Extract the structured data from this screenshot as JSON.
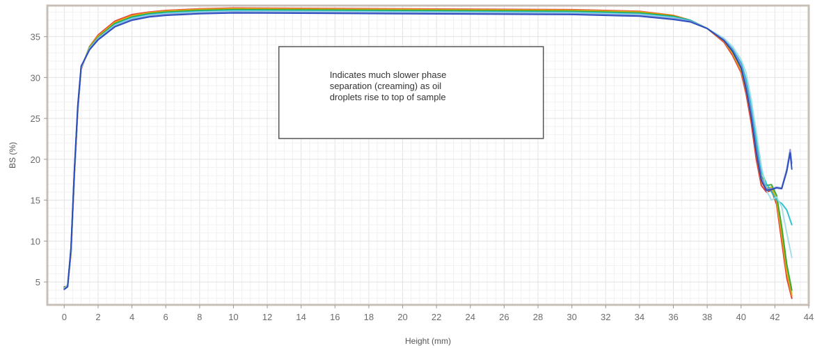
{
  "chart_data": {
    "type": "line",
    "xlabel": "Height (mm)",
    "ylabel": "BS (%)",
    "xlim": [
      -1,
      44
    ],
    "ylim": [
      2.2,
      38.8
    ],
    "xticks": [
      0,
      2,
      4,
      6,
      8,
      10,
      12,
      14,
      16,
      18,
      20,
      22,
      24,
      26,
      28,
      30,
      32,
      34,
      36,
      38,
      40,
      42,
      44
    ],
    "yticks": [
      5,
      10,
      15,
      20,
      25,
      30,
      35
    ],
    "grid": true,
    "annotation": {
      "lines": [
        "Indicates much slower phase",
        "separation (creaming) as oil",
        "droplets rise to top of sample"
      ],
      "anchor": [
        20.5,
        28.5
      ]
    },
    "colors": {
      "frame": "#c8c0b8",
      "grid_major": "#e2e2e2",
      "grid_minor": "#f1f1f1",
      "annotation_border": "#555555"
    },
    "series": [
      {
        "color": "#d62728",
        "x": [
          0,
          0.2,
          0.4,
          0.6,
          0.8,
          1.0,
          1.5,
          2.0,
          3.0,
          4.0,
          5.0,
          6.0,
          8.0,
          10.0,
          20.0,
          30.0,
          34.0,
          36.0,
          37.0,
          38.0,
          39.0,
          39.5,
          40.0,
          40.3,
          40.6,
          40.9,
          41.2,
          41.5,
          41.8,
          42.1,
          42.4,
          42.7,
          43.0
        ],
        "y": [
          4.4,
          4.5,
          8.5,
          18.0,
          26.0,
          31.0,
          33.8,
          35.2,
          36.9,
          37.7,
          38.0,
          38.2,
          38.4,
          38.5,
          38.4,
          38.3,
          38.1,
          37.6,
          37.0,
          36.0,
          34.3,
          32.7,
          30.6,
          28.0,
          24.5,
          20.0,
          16.8,
          16.0,
          16.2,
          14.5,
          10.0,
          5.5,
          3.0
        ]
      },
      {
        "color": "#ff7f0e",
        "x": [
          0,
          0.2,
          0.4,
          0.6,
          0.8,
          1.0,
          1.5,
          2.0,
          3.0,
          4.0,
          5.0,
          6.0,
          8.0,
          10.0,
          20.0,
          30.0,
          34.0,
          36.0,
          37.0,
          38.0,
          39.0,
          39.5,
          40.0,
          40.3,
          40.6,
          40.9,
          41.2,
          41.5,
          41.8,
          42.1,
          42.4,
          42.7,
          43.0
        ],
        "y": [
          4.3,
          4.5,
          8.6,
          18.2,
          26.1,
          31.1,
          33.8,
          35.1,
          36.8,
          37.6,
          37.95,
          38.15,
          38.35,
          38.45,
          38.35,
          38.25,
          38.05,
          37.6,
          37.0,
          36.0,
          34.4,
          32.9,
          30.8,
          28.4,
          25.0,
          20.6,
          17.2,
          16.3,
          16.4,
          14.8,
          10.6,
          6.0,
          3.3
        ]
      },
      {
        "color": "#bcbd22",
        "x": [
          0,
          0.2,
          0.4,
          0.6,
          0.8,
          1.0,
          1.5,
          2.0,
          3.0,
          4.0,
          5.0,
          6.0,
          8.0,
          10.0,
          20.0,
          30.0,
          34.0,
          36.0,
          37.0,
          38.0,
          39.0,
          39.5,
          40.0,
          40.3,
          40.6,
          40.9,
          41.2,
          41.5,
          41.8,
          42.1,
          42.4,
          42.7,
          43.0
        ],
        "y": [
          4.3,
          4.5,
          8.7,
          18.3,
          26.2,
          31.1,
          33.7,
          35.0,
          36.7,
          37.5,
          37.9,
          38.1,
          38.3,
          38.4,
          38.3,
          38.2,
          38.0,
          37.5,
          37.0,
          36.0,
          34.5,
          33.0,
          31.0,
          28.7,
          25.4,
          21.2,
          17.6,
          16.5,
          16.6,
          15.2,
          11.2,
          6.6,
          3.6
        ]
      },
      {
        "color": "#2ca02c",
        "x": [
          0,
          0.2,
          0.4,
          0.6,
          0.8,
          1.0,
          1.5,
          2.0,
          3.0,
          4.0,
          5.0,
          6.0,
          8.0,
          10.0,
          20.0,
          30.0,
          34.0,
          36.0,
          37.0,
          38.0,
          39.0,
          39.5,
          40.0,
          40.3,
          40.6,
          40.9,
          41.2,
          41.5,
          41.8,
          42.1,
          42.4,
          42.7,
          43.0
        ],
        "y": [
          4.3,
          4.6,
          8.8,
          18.4,
          26.3,
          31.2,
          33.7,
          34.9,
          36.6,
          37.4,
          37.8,
          38.0,
          38.2,
          38.3,
          38.2,
          38.1,
          37.9,
          37.5,
          37.0,
          36.0,
          34.6,
          33.2,
          31.2,
          29.0,
          25.8,
          21.8,
          18.0,
          16.8,
          16.9,
          15.6,
          11.8,
          7.2,
          4.0
        ]
      },
      {
        "color": "#17becf",
        "x": [
          0,
          0.2,
          0.4,
          0.6,
          0.8,
          1.0,
          1.5,
          2.0,
          3.0,
          4.0,
          5.0,
          6.0,
          8.0,
          10.0,
          20.0,
          30.0,
          34.0,
          36.0,
          37.0,
          38.0,
          39.0,
          39.5,
          40.0,
          40.3,
          40.6,
          40.9,
          41.2,
          41.5,
          41.8,
          42.1,
          42.4,
          42.7,
          43.0
        ],
        "y": [
          4.2,
          4.6,
          8.9,
          18.5,
          26.4,
          31.2,
          33.6,
          34.8,
          36.5,
          37.3,
          37.7,
          37.9,
          38.1,
          38.2,
          38.1,
          38.0,
          37.8,
          37.4,
          37.0,
          36.0,
          34.7,
          33.5,
          31.8,
          29.8,
          26.5,
          22.5,
          18.6,
          17.0,
          16.0,
          15.0,
          14.6,
          13.8,
          12.0
        ]
      },
      {
        "color": "#9edae5",
        "x": [
          0,
          0.2,
          0.4,
          0.6,
          0.8,
          1.0,
          1.5,
          2.0,
          3.0,
          4.0,
          5.0,
          6.0,
          8.0,
          10.0,
          20.0,
          30.0,
          34.0,
          36.0,
          37.0,
          38.0,
          39.0,
          39.5,
          40.0,
          40.3,
          40.6,
          40.9,
          41.2,
          41.5,
          41.8,
          42.1,
          42.4,
          42.7,
          43.0
        ],
        "y": [
          4.2,
          4.6,
          9.0,
          18.5,
          26.4,
          31.2,
          33.6,
          34.8,
          36.4,
          37.2,
          37.6,
          37.8,
          38.0,
          38.1,
          38.0,
          37.9,
          37.7,
          37.3,
          36.9,
          36.0,
          34.8,
          33.8,
          32.2,
          30.6,
          27.4,
          23.4,
          19.2,
          16.2,
          15.0,
          15.4,
          14.2,
          11.0,
          8.0
        ]
      },
      {
        "color": "#7b8fd4",
        "x": [
          0,
          0.2,
          0.4,
          0.6,
          0.8,
          1.0,
          1.5,
          2.0,
          3.0,
          4.0,
          5.0,
          6.0,
          8.0,
          10.0,
          20.0,
          30.0,
          34.0,
          36.0,
          37.0,
          38.0,
          39.0,
          39.5,
          40.0,
          40.3,
          40.6,
          40.9,
          41.2,
          41.5,
          41.8,
          42.1,
          42.4,
          42.7,
          42.9,
          43.0
        ],
        "y": [
          4.1,
          4.5,
          9.1,
          18.6,
          26.5,
          31.3,
          33.5,
          34.7,
          36.3,
          37.1,
          37.5,
          37.7,
          37.9,
          38.0,
          37.9,
          37.8,
          37.6,
          37.2,
          36.9,
          36.0,
          34.6,
          33.4,
          31.6,
          29.2,
          25.8,
          21.4,
          17.8,
          16.4,
          16.4,
          16.6,
          16.5,
          18.8,
          21.2,
          19.5
        ]
      },
      {
        "color": "#2142b8",
        "x": [
          0,
          0.2,
          0.4,
          0.6,
          0.8,
          1.0,
          1.5,
          2.0,
          3.0,
          4.0,
          5.0,
          6.0,
          8.0,
          10.0,
          20.0,
          30.0,
          34.0,
          36.0,
          37.0,
          38.0,
          39.0,
          39.5,
          40.0,
          40.3,
          40.6,
          40.9,
          41.2,
          41.5,
          41.8,
          42.1,
          42.4,
          42.7,
          42.9,
          43.0
        ],
        "y": [
          4.1,
          4.4,
          9.2,
          18.7,
          26.6,
          31.4,
          33.4,
          34.6,
          36.2,
          37.0,
          37.4,
          37.6,
          37.8,
          37.9,
          37.8,
          37.7,
          37.5,
          37.1,
          36.8,
          36.0,
          34.5,
          33.2,
          31.2,
          28.6,
          25.2,
          20.8,
          17.4,
          16.2,
          16.3,
          16.5,
          16.4,
          18.5,
          20.8,
          18.8
        ]
      }
    ]
  }
}
